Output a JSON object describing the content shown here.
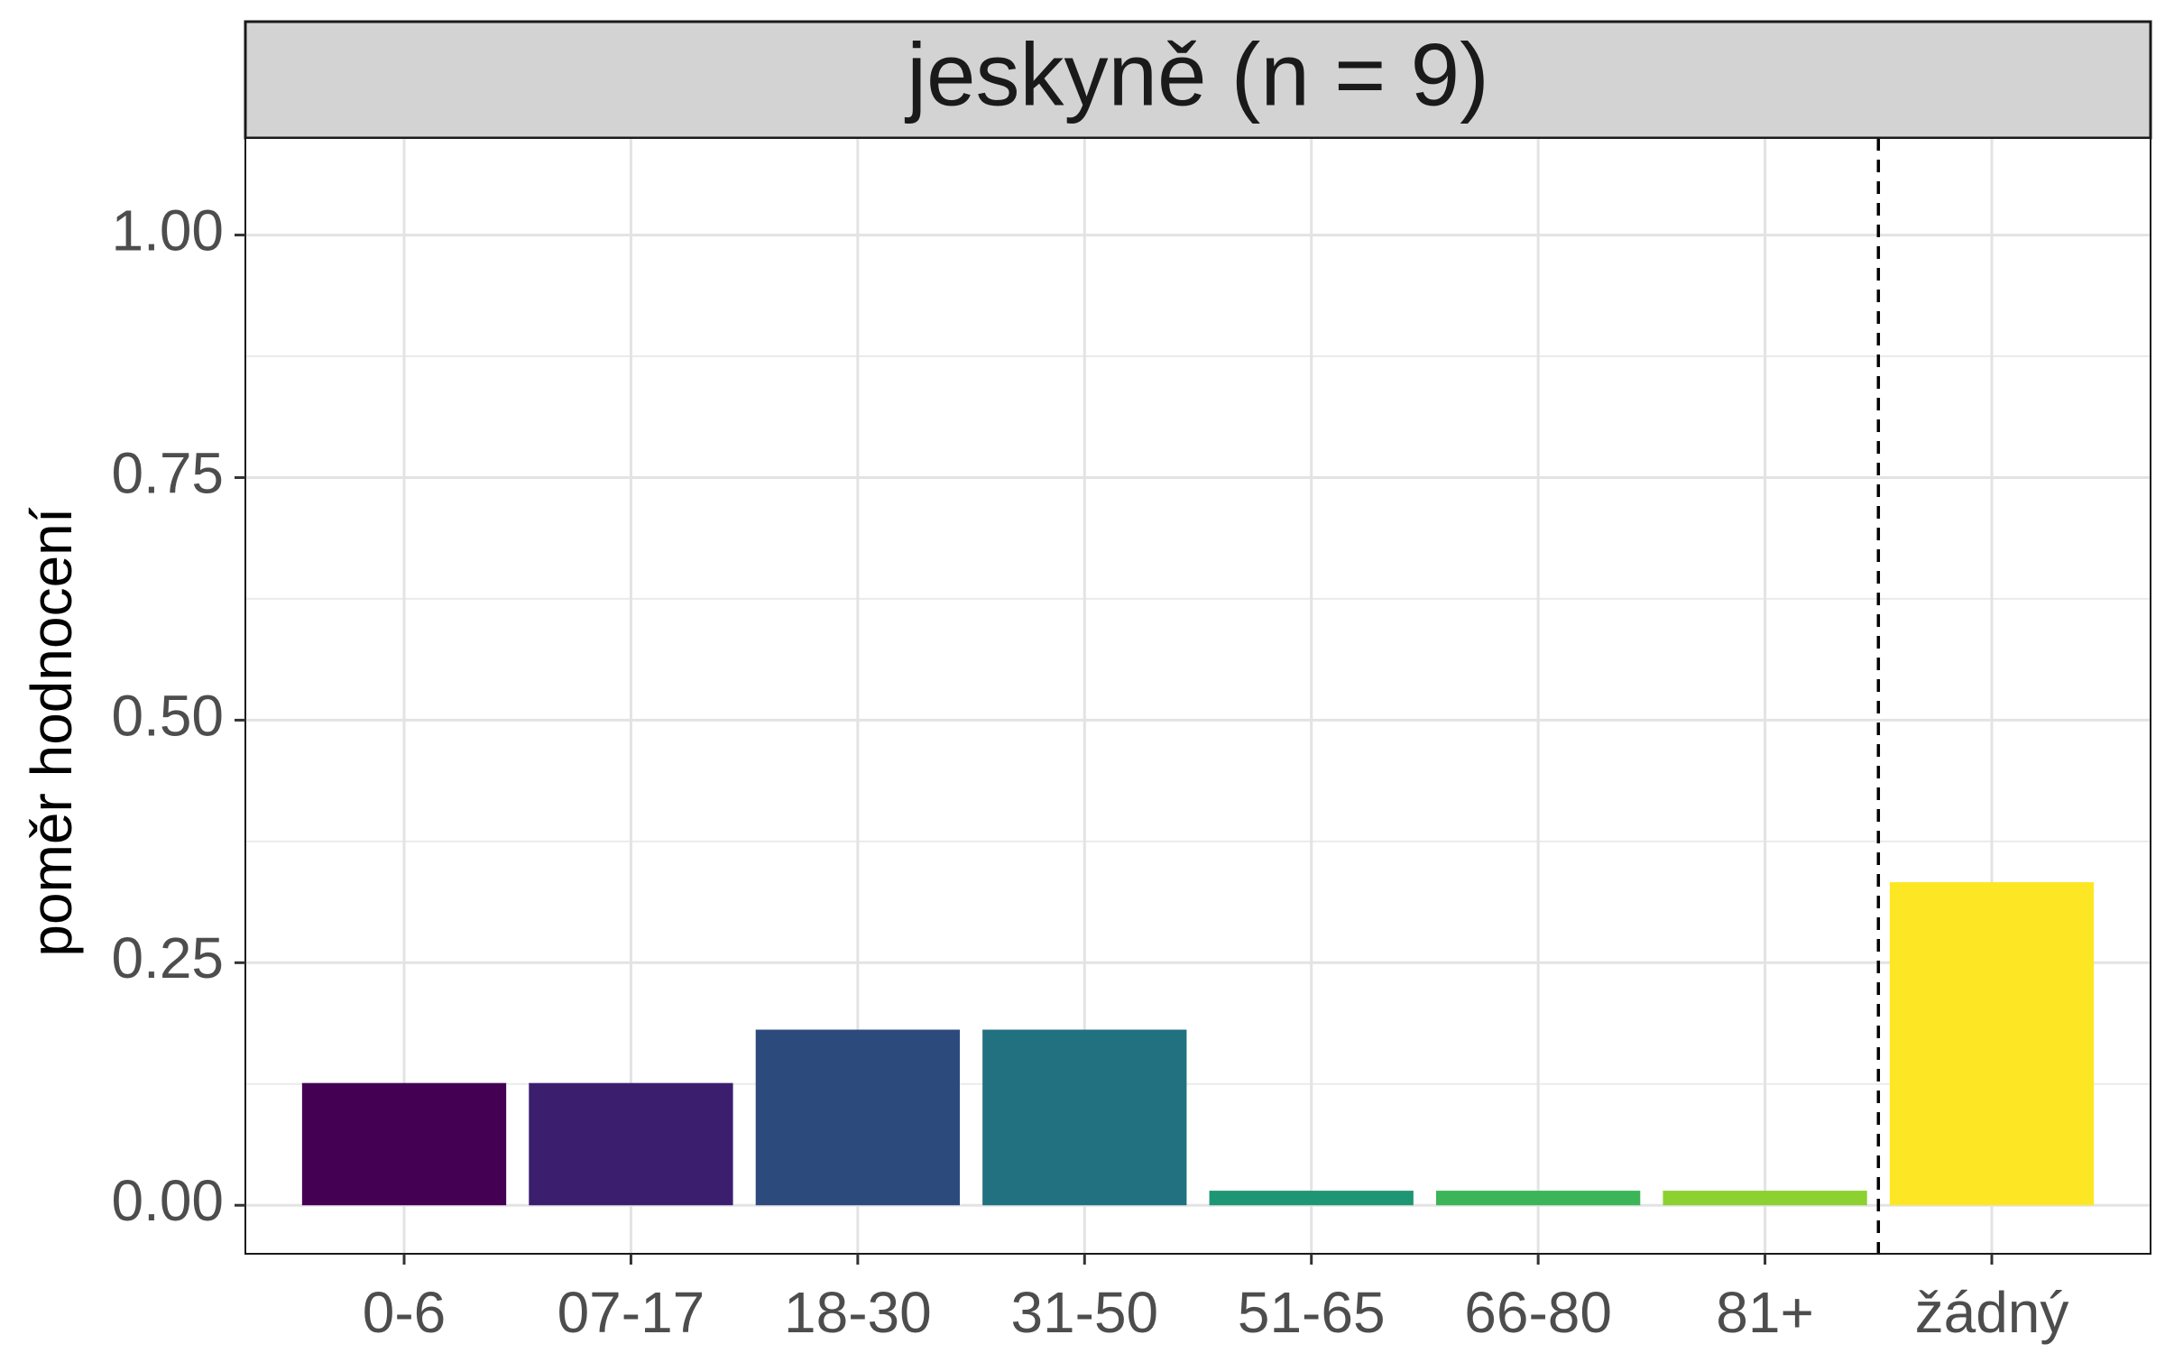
{
  "chart_data": {
    "type": "bar",
    "title": "jeskyně (n = 9)",
    "xlabel": "",
    "ylabel": "poměr hodnocení",
    "categories": [
      "0-6",
      "07-17",
      "18-30",
      "31-50",
      "51-65",
      "66-80",
      "81+",
      "žádný"
    ],
    "values": [
      0.126,
      0.126,
      0.181,
      0.181,
      0.015,
      0.015,
      0.015,
      0.333
    ],
    "colors": [
      "#440154",
      "#3b1f6e",
      "#2d4a7c",
      "#217180",
      "#1f9673",
      "#3bb557",
      "#8cd12f",
      "#fde725"
    ],
    "ylim": [
      -0.05,
      1.1
    ],
    "yticks": [
      0.0,
      0.25,
      0.5,
      0.75,
      1.0
    ],
    "ytick_labels": [
      "0.00",
      "0.25",
      "0.50",
      "0.75",
      "1.00"
    ],
    "separator_after_category": "81+",
    "separator_style": "dashed",
    "grid": true,
    "panel_border": true
  }
}
